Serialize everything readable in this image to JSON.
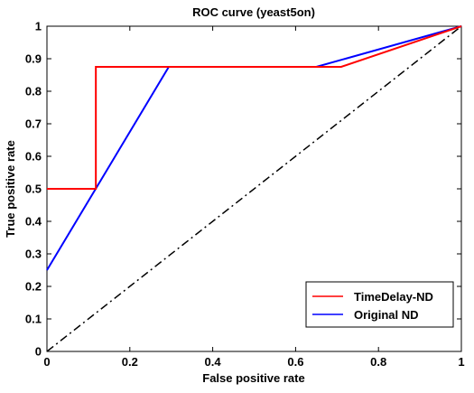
{
  "chart_data": {
    "type": "line",
    "title": "ROC curve (yeast5on)",
    "xlabel": "False positive rate",
    "ylabel": "True positive rate",
    "xlim": [
      0,
      1
    ],
    "ylim": [
      0,
      1
    ],
    "xticks": [
      "0",
      "0.2",
      "0.4",
      "0.6",
      "0.8",
      "1"
    ],
    "xtick_values": [
      0,
      0.2,
      0.4,
      0.6,
      0.8,
      1
    ],
    "yticks": [
      "0",
      "0.1",
      "0.2",
      "0.3",
      "0.4",
      "0.5",
      "0.6",
      "0.7",
      "0.8",
      "0.9",
      "1"
    ],
    "ytick_values": [
      0,
      0.1,
      0.2,
      0.3,
      0.4,
      0.5,
      0.6,
      0.7,
      0.8,
      0.9,
      1
    ],
    "grid": false,
    "legend_position": "bottom-right",
    "series": [
      {
        "name": "TimeDelay-ND",
        "color": "#ff0000",
        "x": [
          0,
          0.118,
          0.118,
          0.65,
          0.71,
          1
        ],
        "y": [
          0.5,
          0.5,
          0.875,
          0.875,
          0.875,
          1
        ]
      },
      {
        "name": "Original ND",
        "color": "#0000ff",
        "x": [
          0,
          0.294,
          0.65,
          1
        ],
        "y": [
          0.25,
          0.875,
          0.875,
          1
        ]
      }
    ],
    "reference_line": {
      "color": "#000000",
      "style": "dash-dot",
      "x": [
        0,
        1
      ],
      "y": [
        0,
        1
      ]
    }
  }
}
